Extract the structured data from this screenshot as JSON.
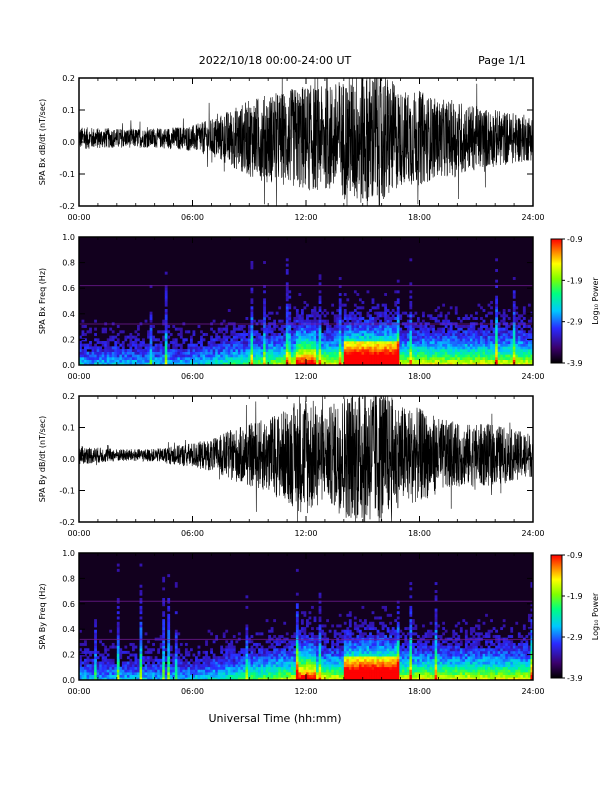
{
  "header": {
    "title": "2022/10/18  00:00-24:00 UT",
    "page": "Page 1/1"
  },
  "footer": {
    "xlabel": "Universal Time (hh:mm)"
  },
  "chart_data": [
    {
      "type": "line",
      "id": "bx",
      "ylabel": "SPA Bx dB/dt (nT/sec)",
      "ylim": [
        -0.2,
        0.2
      ],
      "yticks": [
        "-0.2",
        "-0.1",
        "0.0",
        "0.1",
        "0.2"
      ],
      "xlim": [
        0,
        24
      ],
      "xticks": [
        "00:00",
        "06:00",
        "12:00",
        "18:00",
        "24:00"
      ],
      "envelope_hours": [
        0,
        2,
        4,
        6,
        7,
        8,
        9,
        10,
        11,
        12,
        13,
        14,
        15,
        16,
        17,
        18,
        19,
        20,
        21,
        22,
        23,
        24
      ],
      "envelope_amplitude": [
        0.035,
        0.03,
        0.03,
        0.04,
        0.06,
        0.09,
        0.12,
        0.14,
        0.15,
        0.17,
        0.16,
        0.19,
        0.22,
        0.22,
        0.15,
        0.15,
        0.12,
        0.12,
        0.1,
        0.09,
        0.08,
        0.07
      ]
    },
    {
      "type": "heatmap",
      "id": "bx-spec",
      "ylabel": "SPA Bx Freq (Hz)",
      "ylim": [
        0,
        1
      ],
      "yticks": [
        "0.0",
        "0.2",
        "0.4",
        "0.6",
        "0.8",
        "1.0"
      ],
      "xlim": [
        0,
        24
      ],
      "xticks": [
        "00:00",
        "06:00",
        "12:00",
        "18:00",
        "24:00"
      ],
      "colorbar": {
        "label": "Log₁₀ Power",
        "min": -3.9,
        "max": -0.9,
        "ticks": [
          "-0.9",
          "-1.9",
          "-2.9",
          "-3.9"
        ]
      }
    },
    {
      "type": "line",
      "id": "by",
      "ylabel": "SPA By dB/dt (nT/sec)",
      "ylim": [
        -0.2,
        0.2
      ],
      "yticks": [
        "-0.2",
        "-0.1",
        "0.0",
        "0.1",
        "0.2"
      ],
      "xlim": [
        0,
        24
      ],
      "xticks": [
        "00:00",
        "06:00",
        "12:00",
        "18:00",
        "24:00"
      ],
      "envelope_hours": [
        0,
        2,
        4,
        6,
        7,
        8,
        9,
        10,
        11,
        12,
        13,
        14,
        15,
        16,
        17,
        18,
        19,
        20,
        21,
        22,
        23,
        24
      ],
      "envelope_amplitude": [
        0.03,
        0.02,
        0.02,
        0.04,
        0.05,
        0.08,
        0.1,
        0.12,
        0.15,
        0.2,
        0.14,
        0.2,
        0.22,
        0.22,
        0.16,
        0.15,
        0.12,
        0.1,
        0.1,
        0.1,
        0.08,
        0.07
      ]
    },
    {
      "type": "heatmap",
      "id": "by-spec",
      "ylabel": "SPA By Freq (Hz)",
      "ylim": [
        0,
        1
      ],
      "yticks": [
        "0.0",
        "0.2",
        "0.4",
        "0.6",
        "0.8",
        "1.0"
      ],
      "xlim": [
        0,
        24
      ],
      "xticks": [
        "00:00",
        "06:00",
        "12:00",
        "18:00",
        "24:00"
      ],
      "colorbar": {
        "label": "Log₁₀ Power",
        "min": -3.9,
        "max": -0.9,
        "ticks": [
          "-0.9",
          "-1.9",
          "-2.9",
          "-3.9"
        ]
      }
    }
  ]
}
